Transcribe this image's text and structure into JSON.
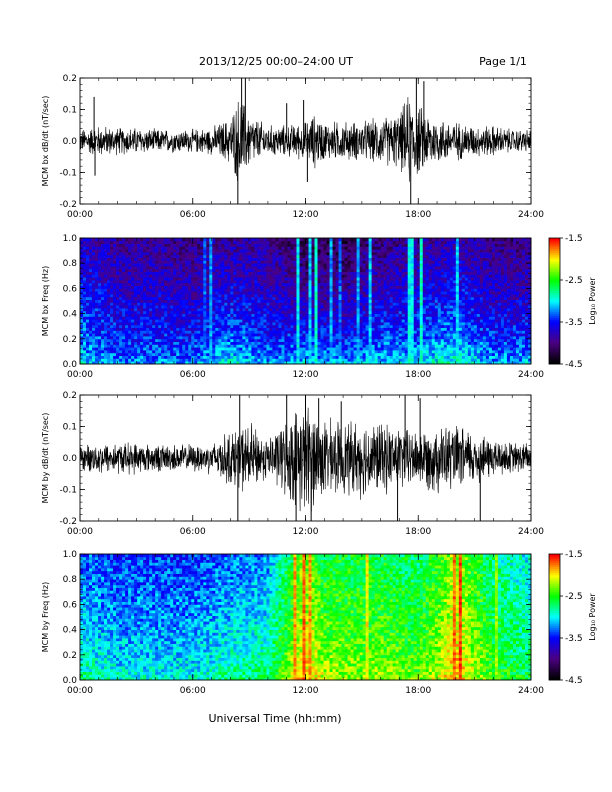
{
  "header": {
    "title": "2013/12/25  00:00–24:00 UT",
    "page": "Page 1/1"
  },
  "footer": {
    "xlabel": "Universal Time (hh:mm)"
  },
  "colors": {
    "trace": "#000000",
    "colormap": [
      "#000000",
      "#4b0082",
      "#0000ff",
      "#00ffff",
      "#00ff00",
      "#ffff00",
      "#ff0000"
    ]
  },
  "chart_data": [
    {
      "type": "line",
      "ylabel": "MCM bx dB/dt (nT/sec)",
      "xticks": [
        "00:00",
        "06:00",
        "12:00",
        "18:00",
        "24:00"
      ],
      "xlim_hours": [
        0,
        24
      ],
      "ylim": [
        -0.2,
        0.2
      ],
      "yticks": [
        "0.2",
        "0.1",
        "0.0",
        "-0.1",
        "-0.2"
      ],
      "envelope": {
        "hours": [
          0,
          1,
          2,
          3,
          4,
          5,
          6,
          7,
          8,
          8.5,
          9,
          10,
          11,
          12,
          12.5,
          13,
          14,
          15,
          16,
          17,
          17.5,
          18,
          19,
          20,
          21,
          22,
          23,
          24
        ],
        "amplitude": [
          0.03,
          0.04,
          0.035,
          0.035,
          0.03,
          0.03,
          0.03,
          0.035,
          0.06,
          0.12,
          0.07,
          0.04,
          0.04,
          0.05,
          0.07,
          0.05,
          0.05,
          0.05,
          0.06,
          0.07,
          0.12,
          0.09,
          0.06,
          0.05,
          0.04,
          0.04,
          0.03,
          0.03
        ]
      },
      "spikes": [
        {
          "hour": 0.75,
          "value": 0.14
        },
        {
          "hour": 0.8,
          "value": -0.11
        },
        {
          "hour": 8.4,
          "value": -0.2
        },
        {
          "hour": 8.6,
          "value": 0.2
        },
        {
          "hour": 8.8,
          "value": 0.2
        },
        {
          "hour": 11.0,
          "value": 0.12
        },
        {
          "hour": 11.9,
          "value": 0.13
        },
        {
          "hour": 12.1,
          "value": -0.13
        },
        {
          "hour": 17.6,
          "value": -0.2
        },
        {
          "hour": 17.9,
          "value": 0.2
        },
        {
          "hour": 18.3,
          "value": 0.19
        }
      ]
    },
    {
      "type": "heatmap",
      "ylabel": "MCM bx Freq (Hz)",
      "xticks": [
        "00:00",
        "06:00",
        "12:00",
        "18:00",
        "24:00"
      ],
      "xlim_hours": [
        0,
        24
      ],
      "ylim": [
        0.0,
        1.0
      ],
      "yticks": [
        "1.0",
        "0.8",
        "0.6",
        "0.4",
        "0.2",
        "0.0"
      ],
      "colorbar": {
        "label": "Log₁₀ Power",
        "ticks": [
          "-1.5",
          "-2.5",
          "-3.5",
          "-4.5"
        ],
        "range": [
          -4.5,
          -1.5
        ]
      },
      "background_power": {
        "hours": [
          0,
          2,
          4,
          6,
          8,
          10,
          12,
          14,
          16,
          18,
          20,
          22,
          24
        ],
        "top": [
          -3.7,
          -3.9,
          -3.9,
          -4.0,
          -3.9,
          -3.9,
          -4.2,
          -4.2,
          -4.0,
          -3.9,
          -3.8,
          -4.0,
          -4.0
        ],
        "bottom": [
          -3.0,
          -3.2,
          -3.2,
          -3.2,
          -2.9,
          -3.2,
          -3.0,
          -3.1,
          -3.0,
          -3.0,
          -2.8,
          -3.1,
          -3.1
        ]
      },
      "bands": [
        {
          "hour": 6.6,
          "power": -3.3
        },
        {
          "hour": 6.9,
          "power": -3.2
        },
        {
          "hour": 11.6,
          "power": -3.0
        },
        {
          "hour": 12.3,
          "power": -3.1
        },
        {
          "hour": 12.6,
          "power": -2.9
        },
        {
          "hour": 13.4,
          "power": -3.2
        },
        {
          "hour": 13.9,
          "power": -3.3
        },
        {
          "hour": 14.8,
          "power": -3.2
        },
        {
          "hour": 15.5,
          "power": -3.1
        },
        {
          "hour": 17.6,
          "power": -3.0
        },
        {
          "hour": 18.2,
          "power": -2.9
        },
        {
          "hour": 20.1,
          "power": -3.1
        }
      ]
    },
    {
      "type": "line",
      "ylabel": "MCM by dB/dt (nT/sec)",
      "xticks": [
        "00:00",
        "06:00",
        "12:00",
        "18:00",
        "24:00"
      ],
      "xlim_hours": [
        0,
        24
      ],
      "ylim": [
        -0.2,
        0.2
      ],
      "yticks": [
        "0.2",
        "0.1",
        "0.0",
        "-0.1",
        "-0.2"
      ],
      "envelope": {
        "hours": [
          0,
          1,
          2,
          3,
          4,
          5,
          6,
          7,
          8,
          9,
          10,
          11,
          12,
          13,
          14,
          15,
          16,
          17,
          18,
          19,
          20,
          21,
          22,
          23,
          24
        ],
        "amplitude": [
          0.03,
          0.04,
          0.04,
          0.04,
          0.035,
          0.035,
          0.035,
          0.04,
          0.07,
          0.09,
          0.05,
          0.1,
          0.15,
          0.1,
          0.09,
          0.1,
          0.09,
          0.08,
          0.07,
          0.09,
          0.08,
          0.07,
          0.05,
          0.04,
          0.04
        ]
      },
      "spikes": [
        {
          "hour": 8.4,
          "value": -0.2
        },
        {
          "hour": 8.5,
          "value": 0.2
        },
        {
          "hour": 11.0,
          "value": 0.2
        },
        {
          "hour": 11.5,
          "value": -0.2
        },
        {
          "hour": 12.0,
          "value": 0.2
        },
        {
          "hour": 12.3,
          "value": -0.2
        },
        {
          "hour": 12.7,
          "value": 0.19
        },
        {
          "hour": 13.9,
          "value": 0.18
        },
        {
          "hour": 16.9,
          "value": -0.2
        },
        {
          "hour": 17.3,
          "value": 0.2
        },
        {
          "hour": 18.1,
          "value": 0.19
        },
        {
          "hour": 21.3,
          "value": -0.2
        }
      ]
    },
    {
      "type": "heatmap",
      "ylabel": "MCM by Freq (Hz)",
      "xticks": [
        "00:00",
        "06:00",
        "12:00",
        "18:00",
        "24:00"
      ],
      "xlim_hours": [
        0,
        24
      ],
      "ylim": [
        0.0,
        1.0
      ],
      "yticks": [
        "1.0",
        "0.8",
        "0.6",
        "0.4",
        "0.2",
        "0.0"
      ],
      "colorbar": {
        "label": "Log₁₀ Power",
        "ticks": [
          "-1.5",
          "-2.5",
          "-3.5",
          "-4.5"
        ],
        "range": [
          -4.5,
          -1.5
        ]
      },
      "background_power": {
        "hours": [
          0,
          2,
          4,
          6,
          8,
          10,
          11,
          12,
          13,
          14,
          16,
          18,
          19,
          20,
          21,
          22,
          24
        ],
        "top": [
          -3.3,
          -3.4,
          -3.4,
          -3.4,
          -3.3,
          -3.2,
          -2.7,
          -2.3,
          -2.6,
          -2.6,
          -2.6,
          -2.7,
          -2.5,
          -2.2,
          -2.5,
          -2.8,
          -3.0
        ],
        "bottom": [
          -2.7,
          -2.9,
          -2.9,
          -2.9,
          -2.7,
          -2.6,
          -2.2,
          -1.8,
          -2.1,
          -2.2,
          -2.2,
          -2.3,
          -2.1,
          -1.8,
          -2.1,
          -2.4,
          -2.6
        ]
      },
      "bands": [
        {
          "hour": 11.4,
          "power": -1.8
        },
        {
          "hour": 11.9,
          "power": -1.7
        },
        {
          "hour": 12.3,
          "power": -1.8
        },
        {
          "hour": 15.3,
          "power": -2.0
        },
        {
          "hour": 19.9,
          "power": -1.7
        },
        {
          "hour": 20.3,
          "power": -1.6
        },
        {
          "hour": 22.1,
          "power": -2.2
        }
      ]
    }
  ]
}
